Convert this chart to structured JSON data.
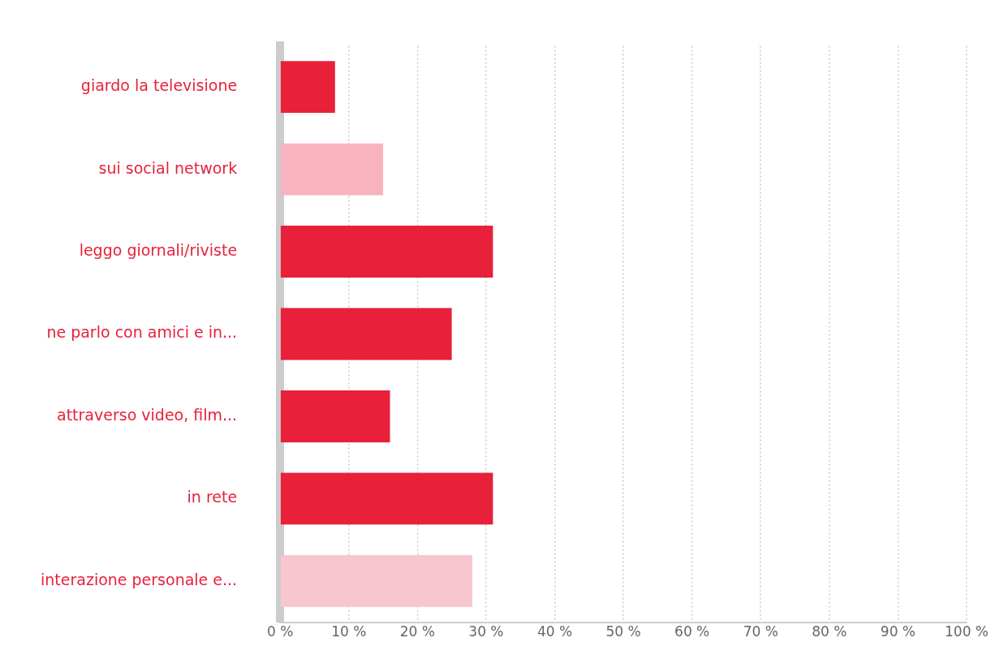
{
  "chart_data": {
    "type": "bar",
    "orientation": "horizontal",
    "categories": [
      "giardo la televisione",
      "sui social network",
      "leggo giornali/riviste",
      "ne parlo con amici e in...",
      "attraverso video, film...",
      "in rete",
      "interazione personale e..."
    ],
    "values": [
      8,
      15,
      31,
      25,
      16,
      31,
      28
    ],
    "colors": [
      "#e8203a",
      "#f7b3bf",
      "#e8203a",
      "#e8203a",
      "#e8203a",
      "#e8203a",
      "#f7c6cf"
    ],
    "xlim": [
      0,
      100
    ],
    "xticks": [
      {
        "value": 0,
        "label": "0 %"
      },
      {
        "value": 10,
        "label": "10 %"
      },
      {
        "value": 20,
        "label": "20 %"
      },
      {
        "value": 30,
        "label": "30 %"
      },
      {
        "value": 40,
        "label": "40 %"
      },
      {
        "value": 50,
        "label": "50 %"
      },
      {
        "value": 60,
        "label": "60 %"
      },
      {
        "value": 70,
        "label": "70 %"
      },
      {
        "value": 80,
        "label": "80 %"
      },
      {
        "value": 90,
        "label": "90 %"
      },
      {
        "value": 100,
        "label": "100 %"
      }
    ],
    "grid": "x",
    "legend": false
  }
}
